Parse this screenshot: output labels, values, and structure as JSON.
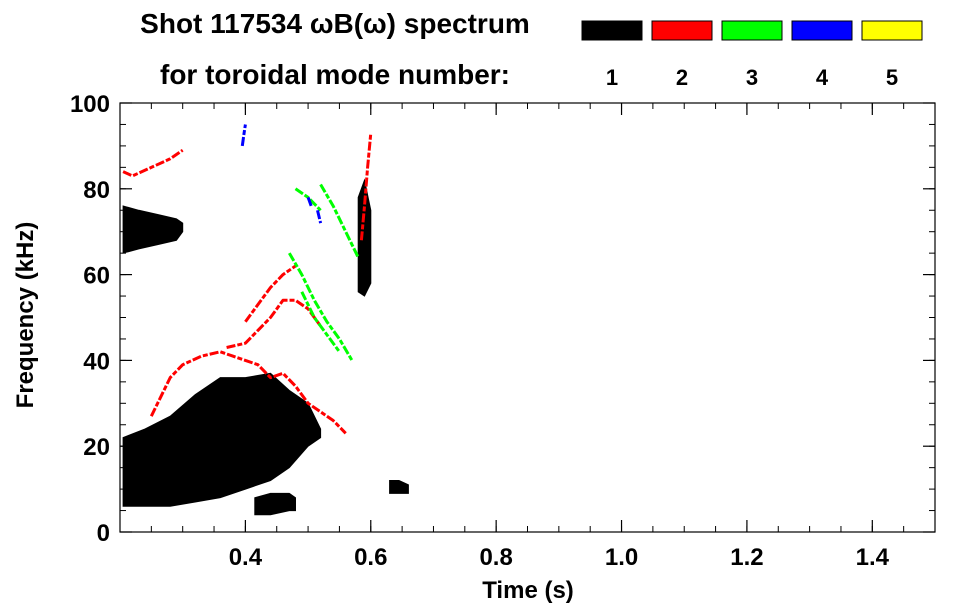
{
  "chart_data": {
    "type": "heatmap",
    "title_line1": "Shot 117534 ωB(ω) spectrum",
    "title_line2": "for toroidal mode number:",
    "xlabel": "Time (s)",
    "ylabel": "Frequency (kHz)",
    "xlim": [
      0.2,
      1.5
    ],
    "ylim": [
      0,
      100
    ],
    "x_ticks": [
      0.4,
      0.6,
      0.8,
      1.0,
      1.2,
      1.4
    ],
    "x_tick_labels": [
      "0.4",
      "0.6",
      "0.8",
      "1.0",
      "1.2",
      "1.4"
    ],
    "y_ticks": [
      0,
      20,
      40,
      60,
      80,
      100
    ],
    "y_tick_labels": [
      "0",
      "20",
      "40",
      "60",
      "80",
      "100"
    ],
    "grid": false,
    "legend_placement": "top",
    "legend": [
      {
        "label": "1",
        "color": "#000000"
      },
      {
        "label": "2",
        "color": "#ff0000"
      },
      {
        "label": "3",
        "color": "#00ff00"
      },
      {
        "label": "4",
        "color": "#0000ff"
      },
      {
        "label": "5",
        "color": "#ffff00"
      }
    ],
    "series": [
      {
        "mode": "1",
        "color": "#000000",
        "kind": "region",
        "t": [
          0.205,
          0.24,
          0.28,
          0.32,
          0.36,
          0.4,
          0.44,
          0.47,
          0.5,
          0.52
        ],
        "f_low": [
          6,
          6,
          6,
          7,
          8,
          10,
          12,
          15,
          20,
          22
        ],
        "f_high": [
          22,
          24,
          27,
          32,
          36,
          36,
          37,
          33,
          30,
          24
        ]
      },
      {
        "mode": "1",
        "color": "#000000",
        "kind": "region",
        "t": [
          0.205,
          0.23,
          0.26,
          0.29,
          0.3
        ],
        "f_low": [
          65,
          66,
          67,
          68,
          70
        ],
        "f_high": [
          76,
          75,
          74,
          73,
          72
        ]
      },
      {
        "mode": "1",
        "color": "#000000",
        "kind": "region",
        "t": [
          0.415,
          0.44,
          0.47,
          0.48
        ],
        "f_low": [
          4,
          4,
          5,
          5
        ],
        "f_high": [
          8,
          9,
          9,
          8
        ]
      },
      {
        "mode": "1",
        "color": "#000000",
        "kind": "region",
        "t": [
          0.58,
          0.59,
          0.6
        ],
        "f_low": [
          56,
          55,
          58
        ],
        "f_high": [
          78,
          82,
          75
        ]
      },
      {
        "mode": "1",
        "color": "#000000",
        "kind": "region",
        "t": [
          0.63,
          0.645,
          0.66
        ],
        "f_low": [
          9,
          9,
          9
        ],
        "f_high": [
          12,
          12,
          11
        ]
      },
      {
        "mode": "2",
        "color": "#ff0000",
        "kind": "line",
        "t": [
          0.205,
          0.22,
          0.25,
          0.28,
          0.3
        ],
        "f": [
          84,
          83,
          85,
          87,
          89
        ]
      },
      {
        "mode": "2",
        "color": "#ff0000",
        "kind": "line",
        "t": [
          0.25,
          0.28,
          0.3,
          0.33,
          0.36,
          0.38,
          0.4,
          0.42,
          0.44,
          0.46,
          0.48,
          0.5,
          0.52,
          0.54,
          0.56
        ],
        "f": [
          27,
          36,
          39,
          41,
          42,
          41,
          40,
          39,
          36,
          37,
          34,
          30,
          28,
          26,
          23
        ]
      },
      {
        "mode": "2",
        "color": "#ff0000",
        "kind": "line",
        "t": [
          0.37,
          0.4,
          0.42,
          0.44,
          0.46,
          0.48,
          0.5,
          0.52
        ],
        "f": [
          43,
          44,
          47,
          50,
          54,
          54,
          52,
          48
        ]
      },
      {
        "mode": "2",
        "color": "#ff0000",
        "kind": "line",
        "t": [
          0.4,
          0.42,
          0.44,
          0.46,
          0.48
        ],
        "f": [
          49,
          53,
          57,
          60,
          62
        ]
      },
      {
        "mode": "2",
        "color": "#ff0000",
        "kind": "line",
        "t": [
          0.585,
          0.59,
          0.595,
          0.6
        ],
        "f": [
          68,
          76,
          85,
          93
        ]
      },
      {
        "mode": "3",
        "color": "#00ff00",
        "kind": "line",
        "t": [
          0.47,
          0.49,
          0.51,
          0.53,
          0.55,
          0.57
        ],
        "f": [
          65,
          60,
          54,
          49,
          45,
          40
        ]
      },
      {
        "mode": "3",
        "color": "#00ff00",
        "kind": "line",
        "t": [
          0.49,
          0.51,
          0.53,
          0.55
        ],
        "f": [
          56,
          50,
          46,
          42
        ]
      },
      {
        "mode": "3",
        "color": "#00ff00",
        "kind": "line",
        "t": [
          0.52,
          0.54,
          0.56,
          0.58
        ],
        "f": [
          81,
          76,
          70,
          64
        ]
      },
      {
        "mode": "3",
        "color": "#00ff00",
        "kind": "line",
        "t": [
          0.48,
          0.5,
          0.52
        ],
        "f": [
          80,
          78,
          75
        ]
      },
      {
        "mode": "4",
        "color": "#0000ff",
        "kind": "line",
        "t": [
          0.395,
          0.398,
          0.4
        ],
        "f": [
          90,
          93,
          95
        ]
      },
      {
        "mode": "4",
        "color": "#0000ff",
        "kind": "line",
        "t": [
          0.5,
          0.505
        ],
        "f": [
          78,
          76
        ]
      },
      {
        "mode": "4",
        "color": "#0000ff",
        "kind": "line",
        "t": [
          0.515,
          0.52
        ],
        "f": [
          75,
          72
        ]
      }
    ]
  }
}
